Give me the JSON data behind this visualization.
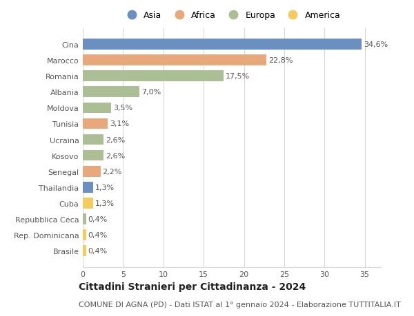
{
  "countries": [
    "Cina",
    "Marocco",
    "Romania",
    "Albania",
    "Moldova",
    "Tunisia",
    "Ucraina",
    "Kosovo",
    "Senegal",
    "Thailandia",
    "Cuba",
    "Repubblica Ceca",
    "Rep. Dominicana",
    "Brasile"
  ],
  "values": [
    34.6,
    22.8,
    17.5,
    7.0,
    3.5,
    3.1,
    2.6,
    2.6,
    2.2,
    1.3,
    1.3,
    0.4,
    0.4,
    0.4
  ],
  "labels": [
    "34,6%",
    "22,8%",
    "17,5%",
    "7,0%",
    "3,5%",
    "3,1%",
    "2,6%",
    "2,6%",
    "2,2%",
    "1,3%",
    "1,3%",
    "0,4%",
    "0,4%",
    "0,4%"
  ],
  "continents": [
    "Asia",
    "Africa",
    "Europa",
    "Europa",
    "Europa",
    "Africa",
    "Europa",
    "Europa",
    "Africa",
    "Asia",
    "America",
    "Europa",
    "America",
    "America"
  ],
  "continent_colors": {
    "Asia": "#6A8FC0",
    "Africa": "#E8A87C",
    "Europa": "#ABBE94",
    "America": "#F5CB5C"
  },
  "legend_order": [
    "Asia",
    "Africa",
    "Europa",
    "America"
  ],
  "title": "Cittadini Stranieri per Cittadinanza - 2024",
  "subtitle": "COMUNE DI AGNA (PD) - Dati ISTAT al 1° gennaio 2024 - Elaborazione TUTTITALIA.IT",
  "xlim": [
    0,
    37
  ],
  "xticks": [
    0,
    5,
    10,
    15,
    20,
    25,
    30,
    35
  ],
  "background_color": "#FFFFFF",
  "grid_color": "#D8D8D8",
  "bar_height": 0.68,
  "label_fontsize": 8,
  "tick_fontsize": 8,
  "title_fontsize": 10,
  "subtitle_fontsize": 8
}
